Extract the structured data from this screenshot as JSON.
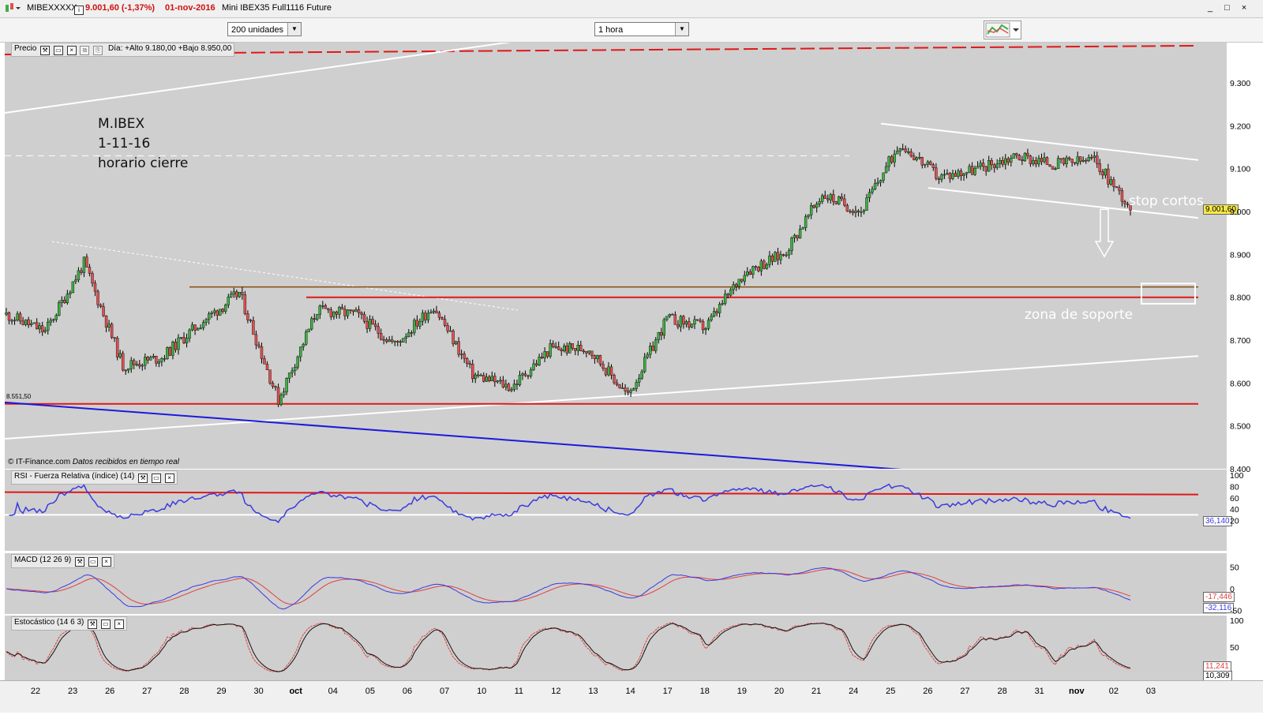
{
  "window": {
    "symbol": "MIBEXXXXX",
    "price_change": "9.001,60 (-1,37%)",
    "date": "01-nov-2016",
    "instrument": "Mini IBEX35 Full1116 Future",
    "controls": "_ □ ×"
  },
  "toolbar": {
    "units_select": "200 unidades",
    "timeframe_select": "1 hora"
  },
  "price_panel": {
    "title": "Precio",
    "day_info": "Día: +Alto 9.180,00 +Bajo 8.950,00",
    "copyright": "© IT-Finance.com",
    "realtime": "Datos recibidos en tiempo real",
    "current_price_badge": "9.001,60",
    "left_level_label": "8.551,50",
    "annotation_title": "M.IBEX",
    "annotation_date": "1-11-16",
    "annotation_note": "horario cierre",
    "stop_label": "stop cortos",
    "support_label": "zona de soporte"
  },
  "rsi_panel": {
    "title": "RSI - Fuerza Relativa (índice) (14)",
    "value_badge": "36,140"
  },
  "macd_panel": {
    "title": "MACD (12 26 9)",
    "badge_signal": "-17,446",
    "badge_macd": "-32,116"
  },
  "stoch_panel": {
    "title": "Estocástico (14 6 3)",
    "badge_k": "11,241",
    "badge_d": "10,309"
  },
  "colors": {
    "panel_bg": "#cfcfcf",
    "up_candle": "#3cb043",
    "down_candle": "#e05050",
    "resistance_red": "#e01818",
    "trend_blue": "#1a1adc",
    "indicator_blue": "#3a3ae0",
    "indicator_red": "#e04040"
  },
  "chart_data": [
    {
      "type": "candlestick",
      "title": "Precio",
      "timeframe": "1 hora",
      "y_ticks": [
        "9.300",
        "9.200",
        "9.100",
        "9.000",
        "8.900",
        "8.800",
        "8.700",
        "8.600",
        "8.500",
        "8.400"
      ],
      "ylim": [
        8395,
        9395
      ],
      "x_labels": [
        "22",
        "23",
        "26",
        "27",
        "28",
        "29",
        "30",
        "oct",
        "04",
        "05",
        "06",
        "07",
        "10",
        "11",
        "12",
        "13",
        "14",
        "17",
        "18",
        "19",
        "20",
        "21",
        "24",
        "25",
        "26",
        "27",
        "28",
        "31",
        "nov",
        "02",
        "03"
      ],
      "daily_closes": [
        8720,
        8880,
        8640,
        8660,
        8740,
        8810,
        8560,
        8770,
        8760,
        8690,
        8780,
        8620,
        8590,
        8680,
        8680,
        8570,
        8750,
        8730,
        8860,
        8900,
        9040,
        9000,
        9160,
        9080,
        9100,
        9130,
        9110,
        9120,
        9002,
        null,
        null
      ],
      "last": 9001.6,
      "day_high": 9180,
      "day_low": 8950,
      "levels": [
        {
          "name": "resistencia",
          "value": 9370
        },
        {
          "name": "soporte",
          "value": 8800
        },
        {
          "name": "soporte",
          "value": 8824
        },
        {
          "name": "soporte",
          "value": 8551.5
        }
      ]
    },
    {
      "type": "line",
      "title": "RSI - Fuerza Relativa (índice) (14)",
      "y_ticks": [
        "100",
        "80",
        "60",
        "40",
        "20"
      ],
      "ylim": [
        0,
        100
      ],
      "levels": [
        70,
        30
      ],
      "last": 36.14
    },
    {
      "type": "line",
      "title": "MACD (12 26 9)",
      "y_ticks": [
        "50",
        "0",
        "-50"
      ],
      "series": [
        {
          "name": "MACD",
          "last": -32.116
        },
        {
          "name": "Señal",
          "last": -17.446
        }
      ]
    },
    {
      "type": "line",
      "title": "Estocástico (14 6 3)",
      "y_ticks": [
        "100",
        "50"
      ],
      "ylim": [
        0,
        100
      ],
      "series": [
        {
          "name": "%K",
          "last": 11.241
        },
        {
          "name": "%D",
          "last": 10.309
        }
      ]
    }
  ]
}
